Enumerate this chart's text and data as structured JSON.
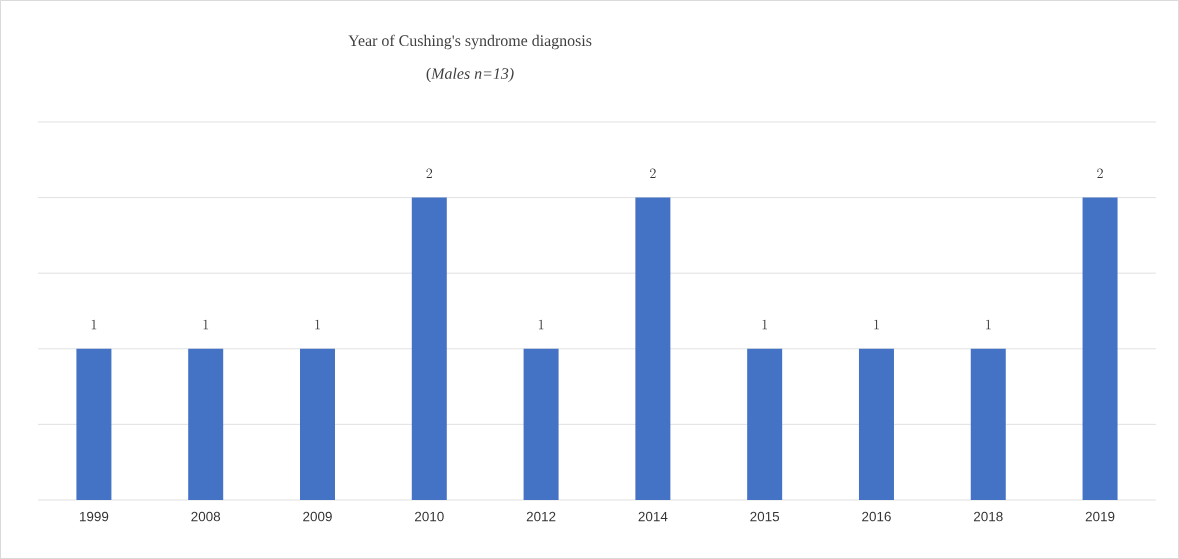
{
  "chart_data": {
    "type": "bar",
    "title": "Year of Cushing's syndrome diagnosis",
    "subtitle": "(*Males n=13)*",
    "categories": [
      "1999",
      "2008",
      "2009",
      "2010",
      "2012",
      "2014",
      "2015",
      "2016",
      "2018",
      "2019"
    ],
    "values": [
      1,
      1,
      1,
      2,
      1,
      2,
      1,
      1,
      1,
      2
    ],
    "color": "#4472c4",
    "ylim": [
      0,
      2.5
    ],
    "yticks": [
      {
        "value": 0,
        "label": null
      },
      {
        "value": 0.5,
        "label": null
      },
      {
        "value": 1,
        "label": null
      },
      {
        "value": 1.5,
        "label": null
      },
      {
        "value": 2,
        "label": null
      },
      {
        "value": 2.5,
        "label": null
      }
    ],
    "tick_labels": "x",
    "grid": "y",
    "data_labels": true
  }
}
